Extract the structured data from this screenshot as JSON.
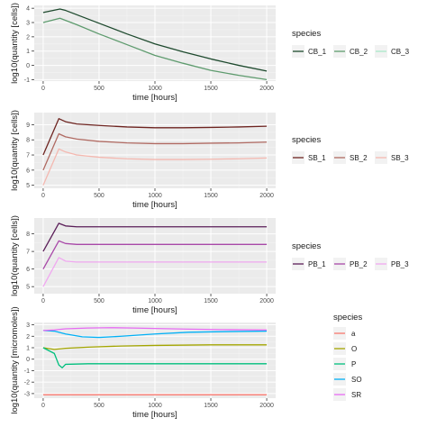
{
  "chart_data": [
    {
      "type": "line",
      "xlabel": "time [hours]",
      "ylabel": "log10(quantity [cells])",
      "xlim": [
        -80,
        2080
      ],
      "ylim": [
        -1.1,
        4.2
      ],
      "xticks": [
        0,
        500,
        1000,
        1500,
        2000
      ],
      "yticks": [
        -1,
        0,
        1,
        2,
        3,
        4
      ],
      "legend_title": "species",
      "legend_position": "right",
      "legend_layout": "horizontal",
      "grid": true,
      "series": [
        {
          "name": "CB_1",
          "color": "#1e4a2e",
          "x": [
            0,
            150,
            200,
            300,
            500,
            750,
            1000,
            1250,
            1500,
            1750,
            2000
          ],
          "y": [
            3.7,
            3.95,
            3.85,
            3.55,
            2.95,
            2.2,
            1.5,
            0.95,
            0.45,
            0.0,
            -0.4
          ]
        },
        {
          "name": "CB_2",
          "color": "#5e9b6e",
          "x": [
            0,
            150,
            200,
            300,
            500,
            750,
            1000,
            1250,
            1500,
            1750,
            2000
          ],
          "y": [
            3.0,
            3.3,
            3.15,
            2.85,
            2.2,
            1.45,
            0.7,
            0.15,
            -0.35,
            -0.7,
            -1.0
          ]
        },
        {
          "name": "CB_3",
          "color": "#a8e8c8",
          "x": [
            0,
            2000
          ],
          "y": [
            -1.2,
            -1.2
          ]
        }
      ]
    },
    {
      "type": "line",
      "xlabel": "time [hours]",
      "ylabel": "log10(quantity [cells])",
      "xlim": [
        -80,
        2080
      ],
      "ylim": [
        4.8,
        9.8
      ],
      "xticks": [
        0,
        500,
        1000,
        1500,
        2000
      ],
      "yticks": [
        5,
        6,
        7,
        8,
        9
      ],
      "legend_title": "species",
      "legend_position": "right",
      "legend_layout": "horizontal",
      "grid": true,
      "series": [
        {
          "name": "SB_1",
          "color": "#6e2420",
          "x": [
            0,
            140,
            200,
            300,
            500,
            750,
            1000,
            1250,
            1500,
            1750,
            2000
          ],
          "y": [
            7.0,
            9.4,
            9.2,
            9.05,
            8.95,
            8.85,
            8.8,
            8.8,
            8.82,
            8.85,
            8.9
          ]
        },
        {
          "name": "SB_2",
          "color": "#b06a62",
          "x": [
            0,
            140,
            200,
            300,
            500,
            750,
            1000,
            1250,
            1500,
            1750,
            2000
          ],
          "y": [
            6.0,
            8.4,
            8.2,
            8.05,
            7.9,
            7.8,
            7.75,
            7.75,
            7.78,
            7.8,
            7.85
          ]
        },
        {
          "name": "SB_3",
          "color": "#f4b8b0",
          "x": [
            0,
            140,
            200,
            300,
            500,
            750,
            1000,
            1250,
            1500,
            1750,
            2000
          ],
          "y": [
            5.0,
            7.4,
            7.2,
            7.0,
            6.85,
            6.75,
            6.7,
            6.7,
            6.72,
            6.75,
            6.8
          ]
        }
      ]
    },
    {
      "type": "line",
      "xlabel": "time [hours]",
      "ylabel": "log10(quantity [cells])",
      "xlim": [
        -80,
        2080
      ],
      "ylim": [
        4.6,
        8.9
      ],
      "xticks": [
        0,
        500,
        1000,
        1500,
        2000
      ],
      "yticks": [
        5,
        6,
        7,
        8
      ],
      "legend_title": "species",
      "legend_position": "right",
      "legend_layout": "horizontal",
      "grid": true,
      "series": [
        {
          "name": "PB_1",
          "color": "#5a1e58",
          "x": [
            0,
            140,
            200,
            300,
            500,
            1000,
            1500,
            2000
          ],
          "y": [
            7.0,
            8.6,
            8.45,
            8.4,
            8.4,
            8.4,
            8.4,
            8.4
          ]
        },
        {
          "name": "PB_2",
          "color": "#a848a8",
          "x": [
            0,
            140,
            200,
            300,
            500,
            1000,
            1500,
            2000
          ],
          "y": [
            6.0,
            7.6,
            7.45,
            7.4,
            7.4,
            7.4,
            7.4,
            7.4
          ]
        },
        {
          "name": "PB_3",
          "color": "#f0a8f0",
          "x": [
            0,
            140,
            200,
            300,
            500,
            1000,
            1500,
            2000
          ],
          "y": [
            5.0,
            6.65,
            6.45,
            6.4,
            6.4,
            6.4,
            6.4,
            6.4
          ]
        }
      ]
    },
    {
      "type": "line",
      "xlabel": "time [hours]",
      "ylabel": "log10(quantity [micromoles])",
      "xlim": [
        -80,
        2080
      ],
      "ylim": [
        -3.4,
        3.2
      ],
      "xticks": [
        0,
        500,
        1000,
        1500,
        2000
      ],
      "yticks": [
        -3,
        -2,
        -1,
        0,
        1,
        2,
        3
      ],
      "legend_title": "species",
      "legend_position": "right",
      "legend_layout": "vertical",
      "grid": true,
      "series": [
        {
          "name": "a",
          "color": "#f8766d",
          "x": [
            0,
            2000
          ],
          "y": [
            -3.1,
            -3.1
          ]
        },
        {
          "name": "O",
          "color": "#a3a500",
          "x": [
            0,
            100,
            200,
            400,
            700,
            1000,
            1500,
            2000
          ],
          "y": [
            1.0,
            0.85,
            0.95,
            1.05,
            1.15,
            1.2,
            1.25,
            1.25
          ]
        },
        {
          "name": "P",
          "color": "#00bf7d",
          "x": [
            0,
            100,
            140,
            170,
            200,
            400,
            1000,
            2000
          ],
          "y": [
            1.0,
            0.5,
            -0.5,
            -0.75,
            -0.45,
            -0.4,
            -0.4,
            -0.4
          ]
        },
        {
          "name": "SO",
          "color": "#00b0f6",
          "x": [
            0,
            100,
            200,
            350,
            500,
            700,
            1000,
            1300,
            1600,
            2000
          ],
          "y": [
            2.5,
            2.45,
            2.2,
            1.95,
            1.9,
            2.0,
            2.2,
            2.35,
            2.4,
            2.45
          ]
        },
        {
          "name": "SR",
          "color": "#e76bf3",
          "x": [
            0,
            100,
            200,
            400,
            600,
            800,
            1000,
            1300,
            1600,
            2000
          ],
          "y": [
            2.5,
            2.55,
            2.65,
            2.72,
            2.75,
            2.72,
            2.68,
            2.62,
            2.58,
            2.55
          ]
        }
      ]
    }
  ]
}
